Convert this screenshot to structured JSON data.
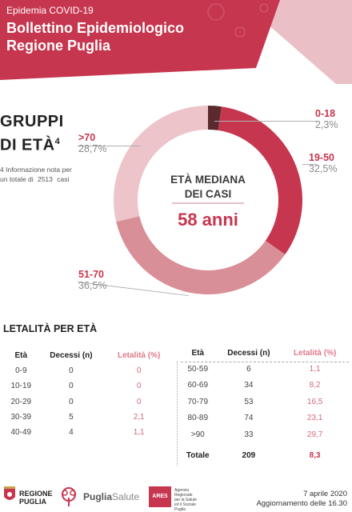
{
  "header": {
    "subtitle": "Epidemia COVID-19",
    "title_line1": "Bollettino Epidemiologico",
    "title_line2": "Regione Puglia",
    "colors": {
      "banner": "#c7364f",
      "banner_light": "#e9b7bf"
    }
  },
  "age_groups": {
    "title_line1": "GRUPPI",
    "title_line2": "DI ETÀ",
    "title_note_marker": "4",
    "note_marker": "4",
    "note_text_1": "Informazione nota per",
    "note_text_2": "un totale di",
    "note_total": "2513",
    "note_text_3": "casi",
    "center_label_line1": "ETÀ MEDIANA",
    "center_label_line2": "DEI CASI",
    "median": "58 anni",
    "chart_data": {
      "type": "pie",
      "categories": [
        "0-18",
        "19-50",
        "51-70",
        ">70"
      ],
      "values": [
        2.3,
        32.5,
        36.5,
        28.7
      ],
      "labels": [
        "2,3%",
        "32,5%",
        "36,5%",
        "28,7%"
      ],
      "colors": [
        "#5a2a2e",
        "#c7364f",
        "#d98f98",
        "#ecc4ca"
      ]
    }
  },
  "lethality": {
    "title": "LETALITÀ PER ETÀ",
    "columns": [
      "Età",
      "Decessi (n)",
      "Letalità (%)"
    ],
    "left_rows": [
      [
        "0-9",
        "0",
        "0"
      ],
      [
        "10-19",
        "0",
        "0"
      ],
      [
        "20-29",
        "0",
        "0"
      ],
      [
        "30-39",
        "5",
        "2,1"
      ],
      [
        "40-49",
        "4",
        "1,1"
      ]
    ],
    "right_rows": [
      [
        "50-59",
        "6",
        "1,1"
      ],
      [
        "60-69",
        "34",
        "8,2"
      ],
      [
        "70-79",
        "53",
        "16,5"
      ],
      [
        "80-89",
        "74",
        "23,1"
      ],
      [
        ">90",
        "33",
        "29,7"
      ]
    ],
    "total": [
      "Totale",
      "209",
      "8,3"
    ]
  },
  "footer": {
    "regione_line1": "REGIONE",
    "regione_line2": "PUGLIA",
    "puglia": "Puglia",
    "salute": "Salute",
    "ares_logo": "ARES",
    "ares_text_1": "Agenzia",
    "ares_text_2": "Regionale",
    "ares_text_3": "per la Salute",
    "ares_text_4": "ed il Sociale",
    "ares_text_5": "Puglia",
    "date": "7 aprile 2020",
    "update": "Aggiornamento delle 16.30"
  }
}
